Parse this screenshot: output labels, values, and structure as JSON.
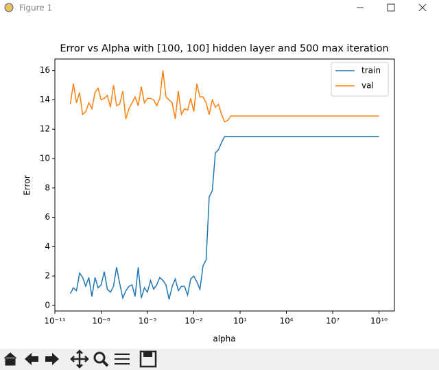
{
  "window": {
    "title": "Figure 1"
  },
  "chart_data": {
    "type": "line",
    "title": "Error vs Alpha with [100, 100] hidden layer and 500 max iteration",
    "x_label": "alpha",
    "y_label": "Error",
    "xscale": "log",
    "x": [
      1e-10,
      1.58e-10,
      2.51e-10,
      3.98e-10,
      6.31e-10,
      1e-09,
      1.58e-09,
      2.51e-09,
      3.98e-09,
      6.31e-09,
      1e-08,
      1.58e-08,
      2.51e-08,
      3.98e-08,
      6.31e-08,
      1e-07,
      1.58e-07,
      2.51e-07,
      3.98e-07,
      6.31e-07,
      1e-06,
      1.58e-06,
      2.51e-06,
      3.98e-06,
      6.31e-06,
      1e-05,
      1.58e-05,
      2.51e-05,
      3.98e-05,
      6.31e-05,
      0.0001,
      0.000158,
      0.000251,
      0.000398,
      0.000631,
      0.001,
      0.00158,
      0.00251,
      0.00398,
      0.00631,
      0.01,
      0.0158,
      0.0251,
      0.0398,
      0.0631,
      0.1,
      0.158,
      0.251,
      0.398,
      0.631,
      1,
      1.58,
      2.51,
      10000000000.0
    ],
    "series": [
      {
        "name": "train",
        "color": "#1f77b4",
        "values": [
          0.8,
          1.2,
          1.0,
          2.2,
          1.9,
          1.3,
          1.9,
          0.6,
          1.9,
          1.2,
          1.4,
          2.3,
          1.1,
          0.9,
          1.3,
          2.6,
          1.5,
          0.5,
          1.0,
          1.3,
          1.4,
          0.6,
          2.6,
          0.5,
          1.2,
          0.9,
          1.7,
          1.1,
          1.4,
          1.9,
          1.7,
          1.4,
          0.4,
          1.3,
          1.8,
          1.0,
          1.3,
          1.3,
          0.7,
          1.8,
          2.0,
          1.6,
          1.1,
          2.7,
          3.1,
          7.4,
          7.8,
          10.4,
          10.6,
          11.1,
          11.5,
          11.5,
          11.5,
          11.5
        ]
      },
      {
        "name": "val",
        "color": "#ff7f0e",
        "values": [
          13.7,
          15.1,
          13.8,
          14.5,
          13.0,
          13.2,
          13.8,
          13.4,
          14.5,
          14.8,
          14.0,
          14.1,
          14.3,
          13.5,
          15.0,
          13.6,
          13.7,
          14.6,
          12.7,
          13.4,
          13.8,
          14.2,
          13.6,
          14.9,
          13.8,
          14.1,
          14.1,
          14.0,
          13.6,
          14.1,
          16.0,
          14.2,
          14.0,
          13.8,
          12.7,
          14.6,
          13.0,
          13.4,
          13.3,
          14.1,
          13.2,
          15.1,
          14.2,
          14.2,
          13.8,
          13.0,
          14.0,
          13.5,
          13.7,
          13.0,
          12.5,
          12.6,
          12.9,
          12.9
        ]
      }
    ],
    "xlim": [
      1e-11,
      100000000000.0
    ],
    "xticks": [
      {
        "value": 1e-11,
        "label": "10⁻¹¹"
      },
      {
        "value": 1e-08,
        "label": "10⁻⁸"
      },
      {
        "value": 1e-05,
        "label": "10⁻⁵"
      },
      {
        "value": 0.01,
        "label": "10⁻²"
      },
      {
        "value": 10,
        "label": "10¹"
      },
      {
        "value": 10000,
        "label": "10⁴"
      },
      {
        "value": 10000000,
        "label": "10⁷"
      },
      {
        "value": 10000000000,
        "label": "10¹⁰"
      }
    ],
    "ylim": [
      -0.38,
      16.78
    ],
    "yticks": [
      0,
      2,
      4,
      6,
      8,
      10,
      12,
      14,
      16
    ],
    "grid": false,
    "legend": "upper-right"
  }
}
